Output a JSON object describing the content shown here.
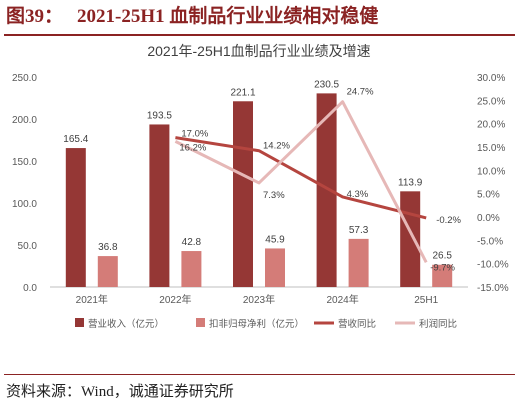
{
  "figure": {
    "number": "图39：",
    "title": "2021-25H1 血制品行业业绩相对稳健"
  },
  "source": "资料来源：Wind，诚通证券研究所",
  "colors": {
    "revenue": "#953735",
    "profit": "#d47c78",
    "revenue_yoy": "#b5453f",
    "profit_yoy": "#e6b8b7",
    "brand": "#8b2323"
  },
  "chart_data": {
    "type": "bar",
    "title": "2021年-25H1血制品行业业绩及增速",
    "categories": [
      "2021年",
      "2022年",
      "2023年",
      "2024年",
      "25H1"
    ],
    "series": [
      {
        "name": "营业收入（亿元）",
        "kind": "bar",
        "axis": "left",
        "values": [
          165.4,
          193.5,
          221.1,
          230.5,
          113.9
        ],
        "labels": [
          "165.4",
          "193.5",
          "221.1",
          "230.5",
          "113.9"
        ]
      },
      {
        "name": "扣非归母净利（亿元）",
        "kind": "bar",
        "axis": "left",
        "values": [
          36.8,
          42.8,
          45.9,
          57.3,
          26.5
        ],
        "labels": [
          "36.8",
          "42.8",
          "45.9",
          "57.3",
          "26.5"
        ]
      },
      {
        "name": "营收同比",
        "kind": "line",
        "axis": "right",
        "values": [
          null,
          17.0,
          14.2,
          4.3,
          -0.2
        ],
        "labels": [
          "",
          "17.0%",
          "14.2%",
          "4.3%",
          "-0.2%"
        ]
      },
      {
        "name": "利润同比",
        "kind": "line",
        "axis": "right",
        "values": [
          null,
          16.2,
          7.3,
          24.7,
          -9.7
        ],
        "labels": [
          "",
          "16.2%",
          "7.3%",
          "24.7%",
          "-9.7%"
        ]
      }
    ],
    "y_left": {
      "min": 0,
      "max": 250,
      "step": 50,
      "ticks": [
        "0.0",
        "50.0",
        "100.0",
        "150.0",
        "200.0",
        "250.0"
      ]
    },
    "y_right": {
      "min": -15,
      "max": 30,
      "step": 5,
      "ticks": [
        "-15.0%",
        "-10.0%",
        "-5.0%",
        "0.0%",
        "5.0%",
        "10.0%",
        "15.0%",
        "20.0%",
        "25.0%",
        "30.0%"
      ]
    },
    "grid": false,
    "legend_position": "bottom"
  }
}
